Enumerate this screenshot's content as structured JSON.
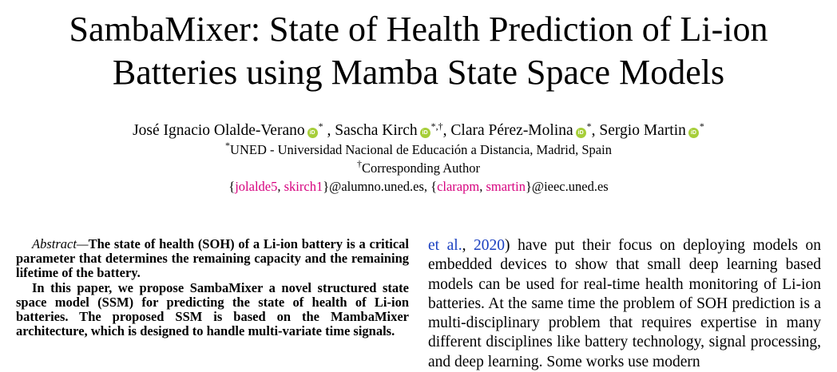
{
  "paper": {
    "title_line1": "SambaMixer: State of Health Prediction of Li-ion",
    "title_line2": "Batteries using Mamba State Space Models",
    "authors": [
      {
        "name": "José Ignacio Olalde-Verano",
        "marks": "*"
      },
      {
        "name": "Sascha Kirch",
        "marks": "*,†"
      },
      {
        "name": "Clara Pérez-Molina",
        "marks": "*"
      },
      {
        "name": "Sergio Martin",
        "marks": "*"
      }
    ],
    "author_sep_1": " , ",
    "author_sep": ", ",
    "orcid_label": "iD",
    "affiliation_mark": "*",
    "affiliation": "UNED - Universidad Nacional de Educación a Distancia, Madrid, Spain",
    "corresponding_mark": "†",
    "corresponding": "Corresponding Author",
    "emails": {
      "open_brace": "{",
      "close_brace": "}",
      "group1": [
        "jolalde5",
        "skirch1"
      ],
      "domain1": "@alumno.uned.es, ",
      "group2": [
        "clarapm",
        "smartin"
      ],
      "domain2": "@ieec.uned.es",
      "separator": ", "
    },
    "abstract": {
      "label": "Abstract",
      "dash": "—",
      "para1": "The state of health (SOH) of a Li-ion battery is a critical parameter that determines the remaining capacity and the remaining lifetime of the battery.",
      "para2": "In this paper, we propose SambaMixer a novel structured state space model (SSM) for predicting the state of health of Li-ion batteries. The proposed SSM is based on the MambaMixer architecture, which is designed to handle multi-variate time signals."
    },
    "body": {
      "cite_text": "et al.",
      "cite_sep": ", ",
      "cite_year": "2020",
      "text": ") have put their focus on deploying models on embedded devices to show that small deep learning based models can be used for real-time health monitoring of Li-ion batteries. At the same time the problem of SOH prediction is a multi-disciplinary problem that requires expertise in many different disciplines like battery technology, signal processing, and deep learning. Some works use modern"
    }
  }
}
